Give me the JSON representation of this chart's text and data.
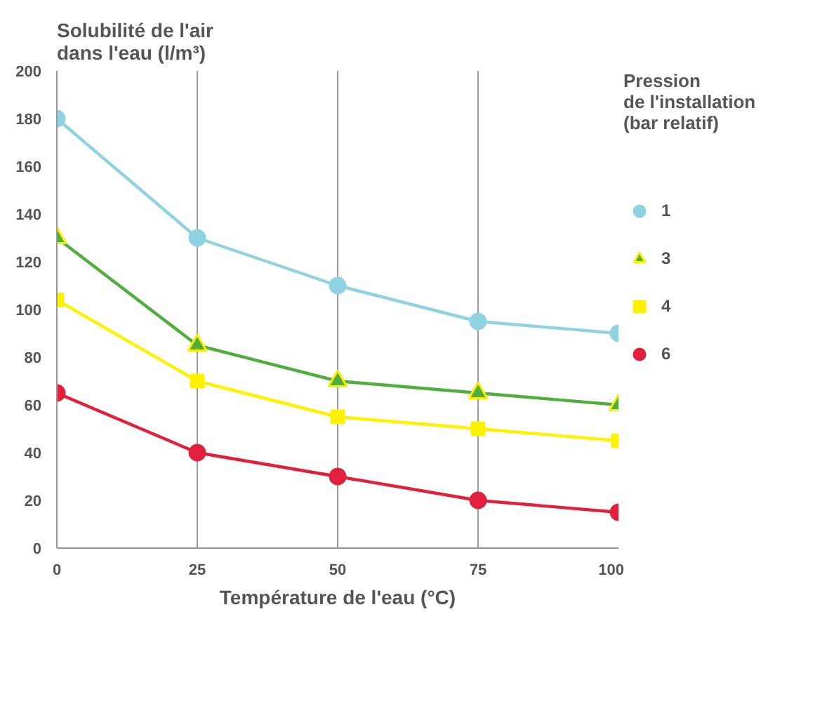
{
  "chart_data": {
    "type": "line",
    "ylabel": "Solubilité de l'air\ndans l'eau (l/m³)",
    "xlabel": "Température de l'eau (°C)",
    "legend_title": "Pression\nde l'installation\n(bar relatif)",
    "x": [
      0,
      25,
      50,
      75,
      100
    ],
    "xlim": [
      0,
      100
    ],
    "xticks": [
      0,
      25,
      50,
      75,
      100
    ],
    "ylim": [
      0,
      200
    ],
    "yticks": [
      0,
      20,
      40,
      60,
      80,
      100,
      120,
      140,
      160,
      180,
      200
    ],
    "grid": "x",
    "legend": "right",
    "series": [
      {
        "name": "1",
        "color": "#8fd3e2",
        "marker": "circle",
        "values": [
          180,
          130,
          110,
          95,
          90
        ]
      },
      {
        "name": "3",
        "color": "#4fae3c",
        "marker": "triangle",
        "values": [
          130,
          85,
          70,
          65,
          60
        ]
      },
      {
        "name": "4",
        "color": "#fff200",
        "marker": "square",
        "values": [
          104,
          70,
          55,
          50,
          45
        ]
      },
      {
        "name": "6",
        "color": "#e0203c",
        "marker": "circle",
        "values": [
          65,
          40,
          30,
          20,
          15
        ]
      }
    ]
  }
}
